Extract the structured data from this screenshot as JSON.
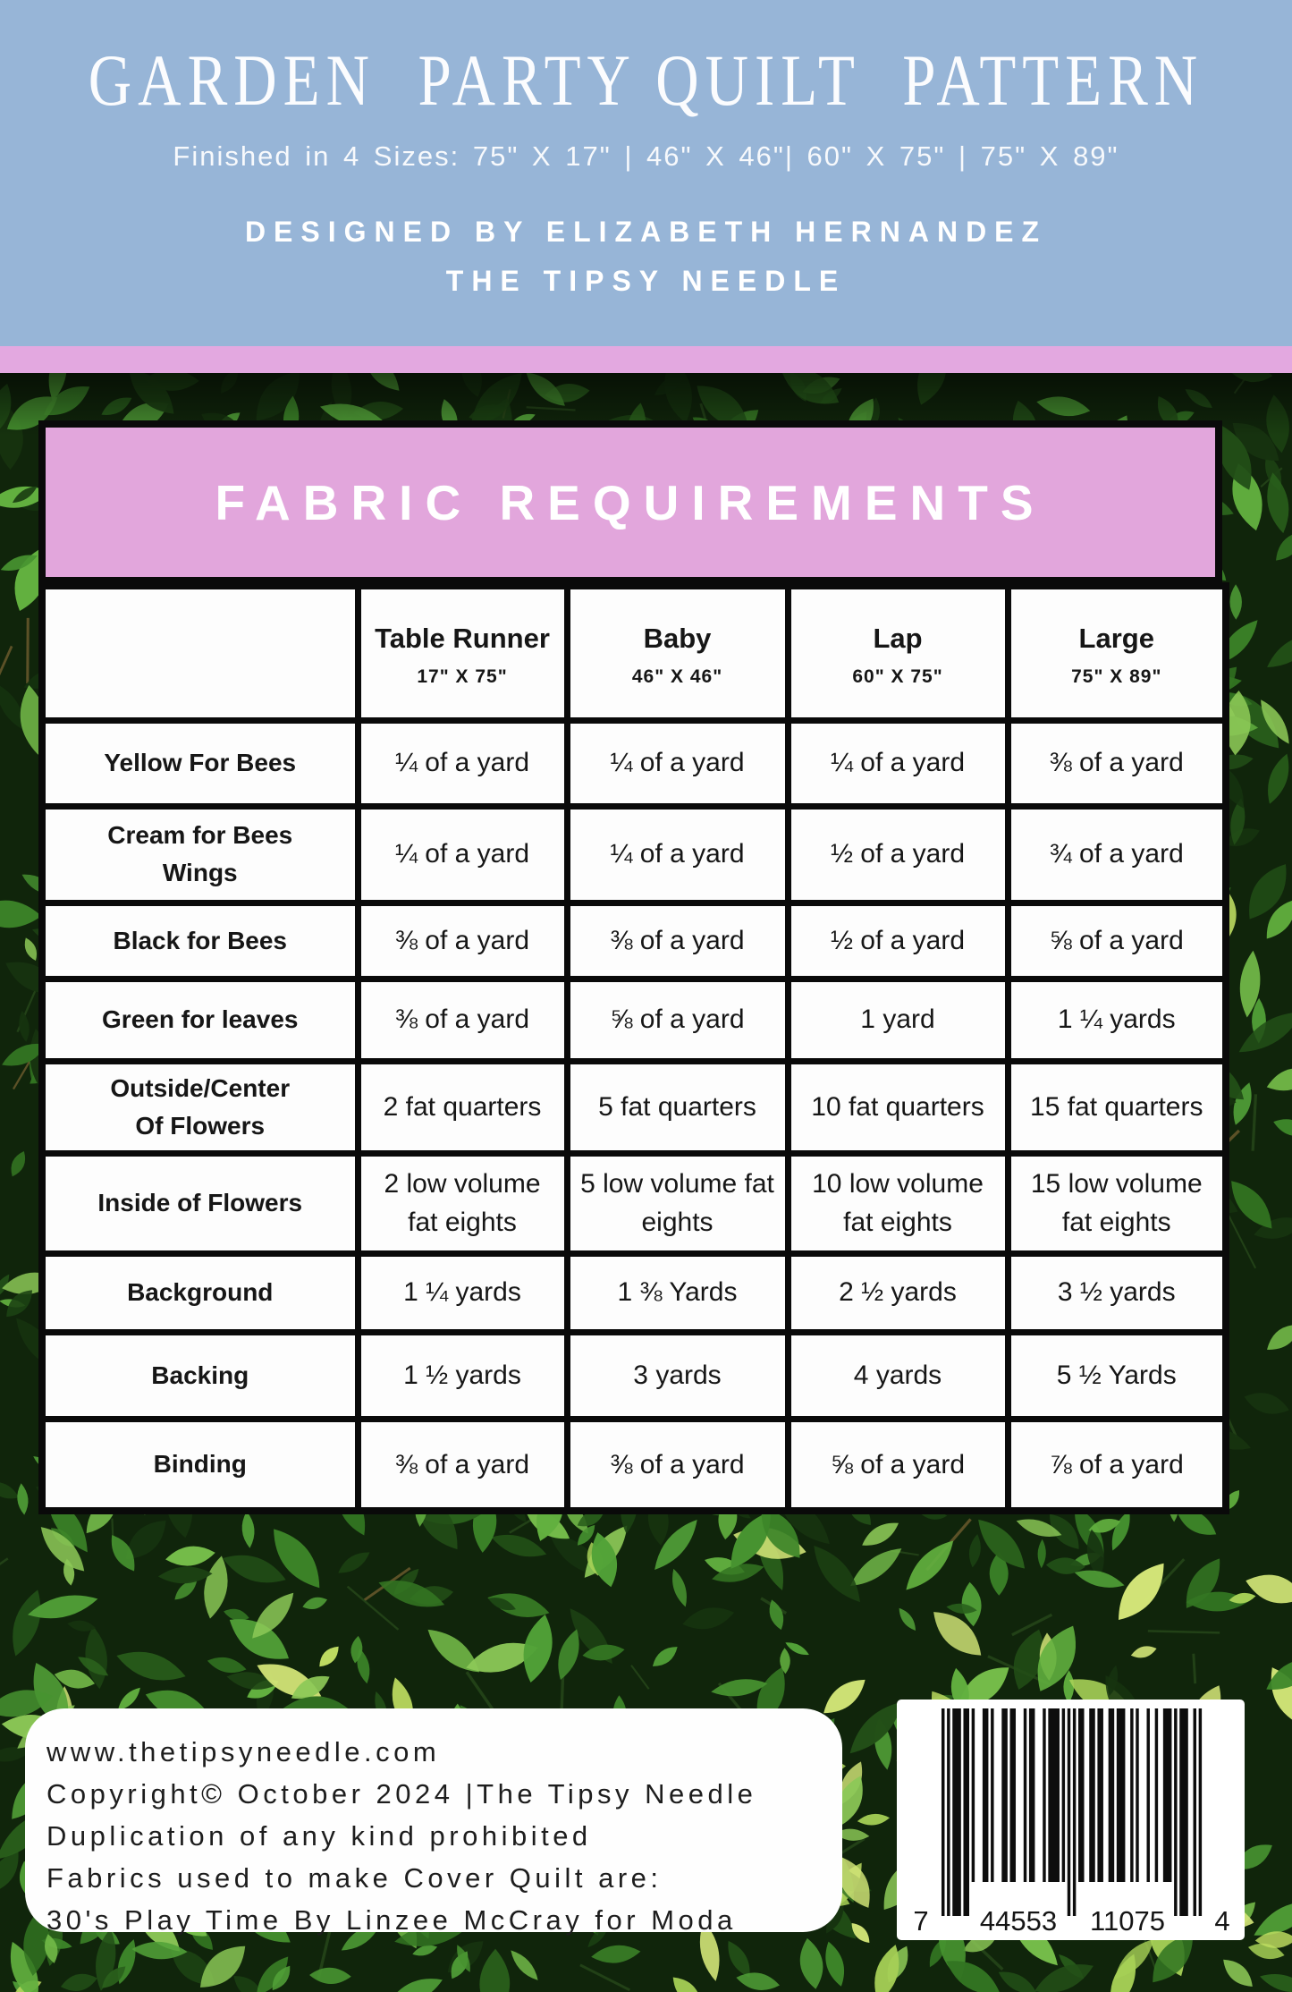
{
  "header": {
    "title": "GARDEN  PARTY QUILT  PATTERN",
    "sizes_line": "Finished in 4 Sizes: 75\" X 17\" | 46\" X 46\"| 60\" X 75\" | 75\" X 89\"",
    "designed_by_line1": "DESIGNED BY ELIZABETH HERNANDEZ",
    "designed_by_line2": "THE TIPSY NEEDLE"
  },
  "banner": {
    "title": "FABRIC REQUIREMENTS"
  },
  "table": {
    "columns": [
      {
        "name": "Table Runner",
        "size": "17\" X 75\""
      },
      {
        "name": "Baby",
        "size": "46\" X 46\""
      },
      {
        "name": "Lap",
        "size": "60\" X 75\""
      },
      {
        "name": "Large",
        "size": "75\" X 89\""
      }
    ],
    "rows": [
      {
        "label": "Yellow For Bees",
        "values": [
          "¼ of a yard",
          "¼ of a yard",
          "¼ of a yard",
          "⅜ of a yard"
        ]
      },
      {
        "label": "Cream for Bees\nWings",
        "values": [
          "¼ of a yard",
          "¼ of a yard",
          "½ of a yard",
          "¾ of a yard"
        ]
      },
      {
        "label": "Black for Bees",
        "values": [
          "⅜ of a yard",
          "⅜ of a yard",
          "½ of a yard",
          "⅝ of a yard"
        ]
      },
      {
        "label": "Green for leaves",
        "values": [
          "⅜ of a yard",
          "⅝ of a yard",
          "1 yard",
          "1 ¼ yards"
        ]
      },
      {
        "label": "Outside/Center\nOf Flowers",
        "values": [
          "2 fat quarters",
          "5 fat quarters",
          "10 fat quarters",
          "15 fat quarters"
        ]
      },
      {
        "label": "Inside of Flowers",
        "values": [
          "2 low volume fat eights",
          "5 low volume fat eights",
          "10 low volume fat eights",
          "15 low volume fat eights"
        ]
      },
      {
        "label": "Background",
        "values": [
          "1 ¼ yards",
          "1 ⅜ Yards",
          "2 ½ yards",
          "3 ½ yards"
        ]
      },
      {
        "label": "Backing",
        "values": [
          "1 ½ yards",
          "3 yards",
          "4 yards",
          "5 ½ Yards"
        ]
      },
      {
        "label": "Binding",
        "values": [
          "⅜ of a yard",
          "⅜ of a yard",
          "⅝ of a yard",
          "⅞ of a yard"
        ]
      }
    ]
  },
  "footer": {
    "lines": [
      "www.thetipsyneedle.com",
      "Copyright© October 2024 |The Tipsy Needle",
      "Duplication of any kind prohibited",
      "Fabrics used to make Cover Quilt are:",
      "30's Play Time By Linzee McCray for Moda"
    ]
  },
  "barcode": {
    "left_digit": "7",
    "group1": "44553",
    "group2": "11075",
    "right_digit": "4"
  },
  "colors": {
    "header_blue": "#97b5d7",
    "divider_pink": "#e3a8e0",
    "banner_pink": "#e2a6dc",
    "hedge_green": "#12290c",
    "text_white": "#ffffff",
    "table_border_black": "#0a0a0a"
  }
}
